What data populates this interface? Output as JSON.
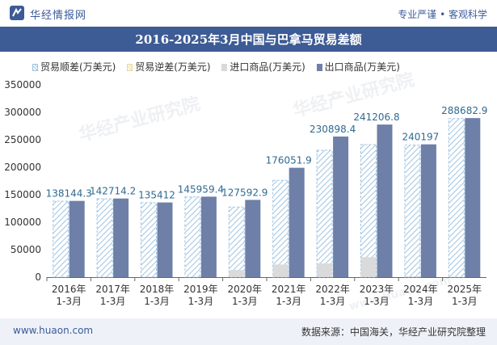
{
  "header": {
    "brand": "华经情报网",
    "tagline": "专业严谨 • 客观科学"
  },
  "chart_data": {
    "type": "bar",
    "title": "2016-2025年3月中国与巴拿马贸易差额",
    "categories": [
      "2016年\n1-3月",
      "2017年\n1-3月",
      "2018年\n1-3月",
      "2019年\n1-3月",
      "2020年\n1-3月",
      "2021年\n1-3月",
      "2022年\n1-3月",
      "2023年\n1-3月",
      "2024年\n1-3月",
      "2025年\n1-3月"
    ],
    "series": [
      {
        "name": "贸易顺差(万美元)",
        "values": [
          138144.3,
          142714.2,
          135412,
          145959.4,
          127592.9,
          176051.9,
          230898.4,
          241206.8,
          240197,
          288682.9
        ],
        "color": "#9fc4e2"
      },
      {
        "name": "贸易逆差(万美元)",
        "values": [
          0,
          0,
          0,
          0,
          0,
          0,
          0,
          0,
          0,
          0
        ],
        "color": "#e8d89a"
      },
      {
        "name": "进口商品(万美元)",
        "values": [
          600,
          400,
          500,
          500,
          13000,
          23000,
          25000,
          36500,
          1500,
          800
        ],
        "color": "#d9d9d9"
      },
      {
        "name": "出口商品(万美元)",
        "values": [
          138744.3,
          143114.2,
          135912,
          146459.4,
          140592.9,
          199051.9,
          255898.4,
          277706.8,
          241697,
          289482.9
        ],
        "color": "#6e7fa8"
      }
    ],
    "data_labels": [
      "138144.3",
      "142714.2",
      "135412",
      "145959.4",
      "127592.9",
      "176051.9",
      "230898.4",
      "241206.8",
      "240197",
      "288682.9"
    ],
    "ylim": [
      0,
      350000
    ],
    "yticks": [
      "0",
      "50000",
      "100000",
      "150000",
      "200000",
      "250000",
      "300000",
      "350000"
    ],
    "grid": false,
    "legend_position": "top-left"
  },
  "footer": {
    "site": "www.huaon.com",
    "source": "数据来源：中国海关，华经产业研究院整理"
  },
  "watermarks": [
    "华经产业研究院",
    "www.huaon.com"
  ]
}
